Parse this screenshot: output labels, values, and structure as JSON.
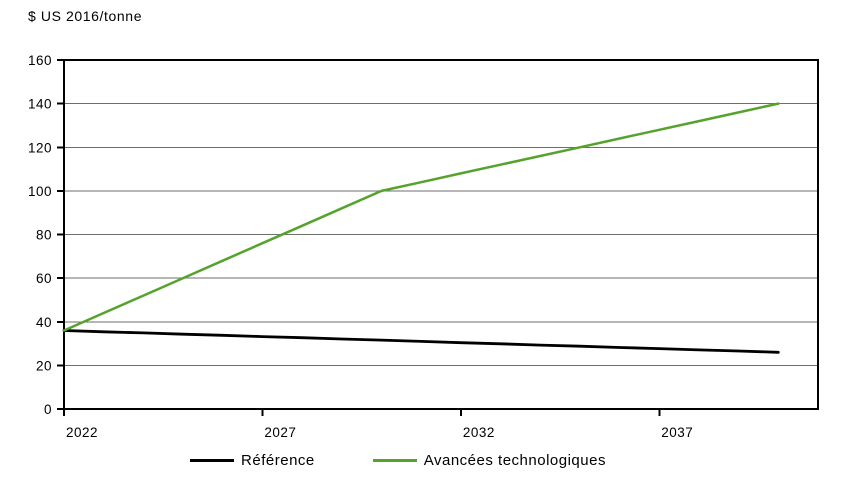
{
  "chart_data": {
    "type": "line",
    "title": "$ US 2016/tonne",
    "xlabel": "",
    "ylabel": "$ US 2016/tonne",
    "x_range": [
      2022,
      2041
    ],
    "ylim": [
      0,
      160
    ],
    "x_ticks": [
      2022,
      2027,
      2032,
      2037
    ],
    "y_ticks": [
      0,
      20,
      40,
      60,
      80,
      100,
      120,
      140,
      160
    ],
    "grid": "horizontal",
    "legend_position": "bottom-center",
    "x": [
      2022,
      2023,
      2024,
      2025,
      2026,
      2027,
      2028,
      2029,
      2030,
      2031,
      2032,
      2033,
      2034,
      2035,
      2036,
      2037,
      2038,
      2039,
      2040
    ],
    "series": [
      {
        "name": "Référence",
        "color": "#000000",
        "values": [
          36,
          35.4,
          34.9,
          34.3,
          33.8,
          33.2,
          32.7,
          32.1,
          31.6,
          31.0,
          30.4,
          29.9,
          29.3,
          28.8,
          28.2,
          27.7,
          27.1,
          26.6,
          26
        ]
      },
      {
        "name": "Avancées technologiques",
        "color": "#55A32D",
        "values": [
          36,
          44,
          52,
          60,
          68,
          76,
          84,
          92,
          100,
          104,
          108,
          112,
          116,
          120,
          124,
          128,
          132,
          136,
          140
        ]
      }
    ]
  },
  "colors": {
    "background": "#ffffff",
    "text": "#000000",
    "axis_border": "#000000",
    "gridline": "#6E6E6E"
  }
}
